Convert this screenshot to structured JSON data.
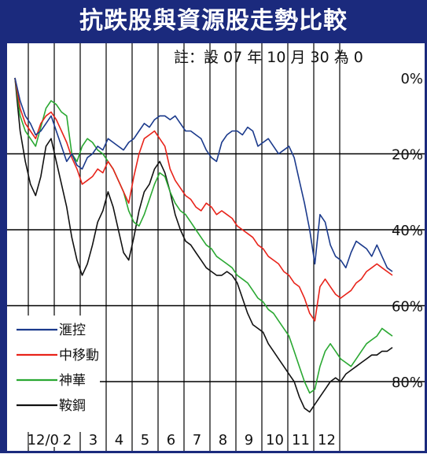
{
  "title": "抗跌股與資源股走勢比較",
  "note": "註：設 07 年 10 月 30 為 0",
  "colors": {
    "frame": "#1b2a7d",
    "hsbc": "#1b3a8c",
    "china_mobile": "#e8231a",
    "shenhua": "#2aa832",
    "angang": "#111111"
  },
  "chart_data": {
    "type": "line",
    "x_tick_labels": [
      "12/08",
      "2",
      "3",
      "4",
      "5",
      "6",
      "7",
      "8",
      "9",
      "10",
      "11",
      "12"
    ],
    "y_axis": {
      "position": "right",
      "tick_labels": [
        "0%",
        "20%",
        "40%",
        "60%",
        "80%"
      ],
      "ticks": [
        0,
        20,
        40,
        60,
        80
      ],
      "range": [
        -5,
        92
      ],
      "inverted": true
    },
    "grid": "on",
    "legend_placement": "bottom-left",
    "series": [
      {
        "name": "滙控",
        "color_key": "hsbc",
        "values": [
          0,
          6,
          10,
          12,
          15,
          14,
          12,
          10,
          14,
          18,
          22,
          20,
          23,
          24,
          21,
          20,
          18,
          19,
          16,
          17,
          18,
          19,
          17,
          16,
          14,
          12,
          13,
          11,
          10,
          10,
          11,
          10,
          12,
          14,
          14,
          15,
          16,
          19,
          21,
          22,
          17,
          15,
          14,
          14,
          15,
          13,
          14,
          18,
          17,
          16,
          18,
          20,
          19,
          18,
          21,
          27,
          33,
          40,
          49,
          36,
          38,
          44,
          47,
          48,
          50,
          46,
          43,
          44,
          45,
          47,
          44,
          47,
          50,
          51
        ]
      },
      {
        "name": "中移動",
        "color_key": "china_mobile",
        "values": [
          0,
          8,
          12,
          14,
          16,
          12,
          10,
          9,
          11,
          14,
          17,
          21,
          24,
          28,
          27,
          26,
          24,
          25,
          22,
          24,
          27,
          30,
          33,
          26,
          20,
          16,
          15,
          14,
          16,
          18,
          24,
          27,
          29,
          31,
          32,
          34,
          35,
          33,
          34,
          36,
          35,
          36,
          37,
          39,
          40,
          41,
          42,
          44,
          45,
          47,
          48,
          49,
          51,
          52,
          54,
          55,
          58,
          62,
          64,
          55,
          53,
          55,
          57,
          58,
          57,
          56,
          54,
          53,
          51,
          50,
          49,
          50,
          51,
          52
        ]
      },
      {
        "name": "神華",
        "color_key": "shenhua",
        "values": [
          0,
          10,
          14,
          16,
          18,
          13,
          8,
          6,
          7,
          9,
          10,
          20,
          22,
          18,
          16,
          17,
          19,
          20,
          22,
          24,
          27,
          30,
          35,
          38,
          39,
          36,
          32,
          28,
          25,
          26,
          30,
          33,
          35,
          36,
          38,
          40,
          42,
          44,
          45,
          47,
          48,
          49,
          50,
          52,
          53,
          54,
          56,
          58,
          59,
          61,
          62,
          64,
          66,
          68,
          72,
          76,
          80,
          83,
          82,
          76,
          72,
          70,
          72,
          74,
          75,
          76,
          74,
          72,
          70,
          69,
          68,
          66,
          67,
          68
        ]
      },
      {
        "name": "鞍鋼",
        "color_key": "angang",
        "values": [
          0,
          14,
          22,
          28,
          31,
          26,
          18,
          16,
          22,
          28,
          34,
          42,
          48,
          52,
          49,
          44,
          38,
          35,
          30,
          34,
          40,
          46,
          48,
          42,
          35,
          30,
          28,
          24,
          22,
          25,
          30,
          36,
          40,
          43,
          44,
          46,
          48,
          50,
          51,
          52,
          52,
          51,
          52,
          54,
          58,
          62,
          65,
          66,
          67,
          70,
          72,
          74,
          76,
          78,
          80,
          84,
          87,
          88,
          86,
          84,
          82,
          80,
          79,
          80,
          78,
          77,
          76,
          75,
          74,
          73,
          73,
          72,
          72,
          71
        ]
      }
    ]
  }
}
